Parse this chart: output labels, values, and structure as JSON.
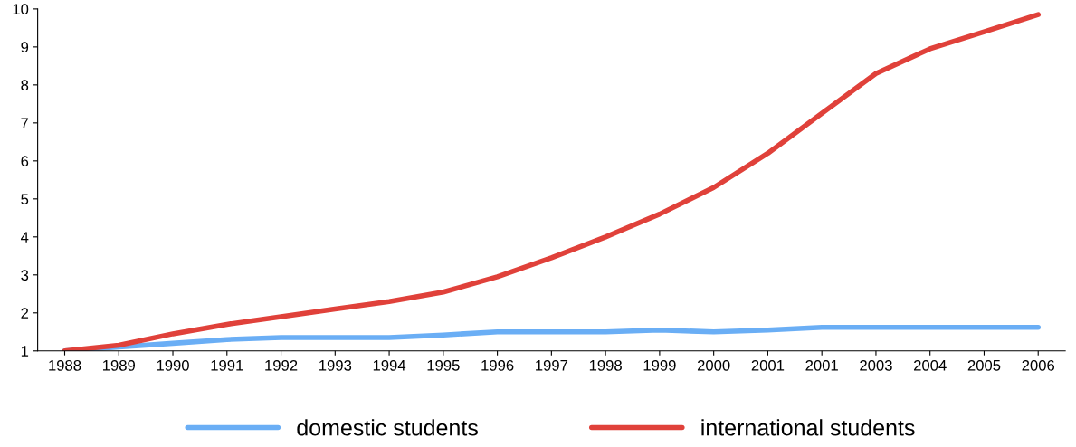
{
  "chart_data": {
    "type": "line",
    "categories": [
      "1988",
      "1989",
      "1990",
      "1991",
      "1992",
      "1993",
      "1994",
      "1995",
      "1996",
      "1997",
      "1998",
      "1999",
      "2000",
      "2001",
      "2001",
      "2003",
      "2004",
      "2005",
      "2006"
    ],
    "series": [
      {
        "name": "domestic students",
        "color": "#6aaef5",
        "values": [
          1.0,
          1.1,
          1.2,
          1.3,
          1.35,
          1.35,
          1.35,
          1.42,
          1.5,
          1.5,
          1.5,
          1.55,
          1.5,
          1.55,
          1.62,
          1.62,
          1.62,
          1.62,
          1.62
        ]
      },
      {
        "name": "international students",
        "color": "#e0413a",
        "values": [
          1.0,
          1.15,
          1.45,
          1.7,
          1.9,
          2.1,
          2.3,
          2.55,
          2.95,
          3.45,
          4.0,
          4.6,
          5.3,
          6.2,
          7.25,
          8.3,
          8.95,
          9.4,
          9.85
        ]
      }
    ],
    "ylim": [
      1,
      10
    ],
    "yticks": [
      1,
      2,
      3,
      4,
      5,
      6,
      7,
      8,
      9,
      10
    ],
    "grid": false,
    "legend": "bottom",
    "marker": "none",
    "line_style": "solid"
  }
}
